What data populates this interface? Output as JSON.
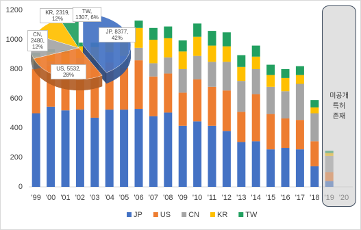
{
  "chart_data": [
    {
      "type": "bar",
      "stacked": true,
      "categories": [
        "'99",
        "'00",
        "'01",
        "'02",
        "'03",
        "'04",
        "'05",
        "'06",
        "'07",
        "'08",
        "'09",
        "'10",
        "'11",
        "'12",
        "'13",
        "'14",
        "'15",
        "'16",
        "'17",
        "'18",
        "'19",
        "'20"
      ],
      "series": [
        {
          "name": "JP",
          "color": "#4472c4",
          "values": [
            500,
            545,
            520,
            525,
            470,
            525,
            525,
            530,
            480,
            505,
            415,
            445,
            415,
            380,
            305,
            310,
            255,
            265,
            255,
            140,
            40,
            0
          ]
        },
        {
          "name": "US",
          "color": "#ed7d31",
          "values": [
            300,
            280,
            280,
            300,
            330,
            320,
            285,
            330,
            270,
            265,
            225,
            285,
            265,
            275,
            205,
            320,
            240,
            200,
            200,
            170,
            60,
            0
          ]
        },
        {
          "name": "CN",
          "color": "#a5a5a5",
          "values": [
            30,
            30,
            40,
            50,
            60,
            70,
            80,
            85,
            90,
            110,
            160,
            160,
            170,
            195,
            210,
            170,
            185,
            185,
            245,
            190,
            110,
            0
          ]
        },
        {
          "name": "KR",
          "color": "#ffc000",
          "values": [
            60,
            60,
            70,
            80,
            90,
            100,
            120,
            135,
            160,
            130,
            120,
            130,
            110,
            105,
            95,
            85,
            80,
            90,
            60,
            40,
            20,
            0
          ]
        },
        {
          "name": "TW",
          "color": "#22a060",
          "values": [
            20,
            20,
            20,
            25,
            30,
            35,
            40,
            50,
            80,
            80,
            75,
            90,
            100,
            95,
            80,
            75,
            70,
            60,
            60,
            50,
            15,
            0
          ]
        }
      ],
      "ylim": [
        0,
        1200
      ],
      "yticks": [
        0,
        200,
        400,
        600,
        800,
        1000,
        1200
      ],
      "grid": false,
      "legend": "bottom",
      "annotation": [
        "미공개",
        "특허",
        "존재"
      ]
    },
    {
      "type": "pie",
      "categories": [
        "JP",
        "US",
        "CN",
        "KR",
        "TW"
      ],
      "values": [
        8377,
        5532,
        2480,
        2319,
        1307
      ],
      "value_labels": [
        "JP, 8377, 42%",
        "US, 5532, 28%",
        "CN, 2480, 12%",
        "KR, 2319, 12%",
        "TW, 1307, 6%"
      ],
      "colors": [
        "#4472c4",
        "#ed7d31",
        "#a5a5a5",
        "#ffc000",
        "#22a060"
      ]
    }
  ]
}
